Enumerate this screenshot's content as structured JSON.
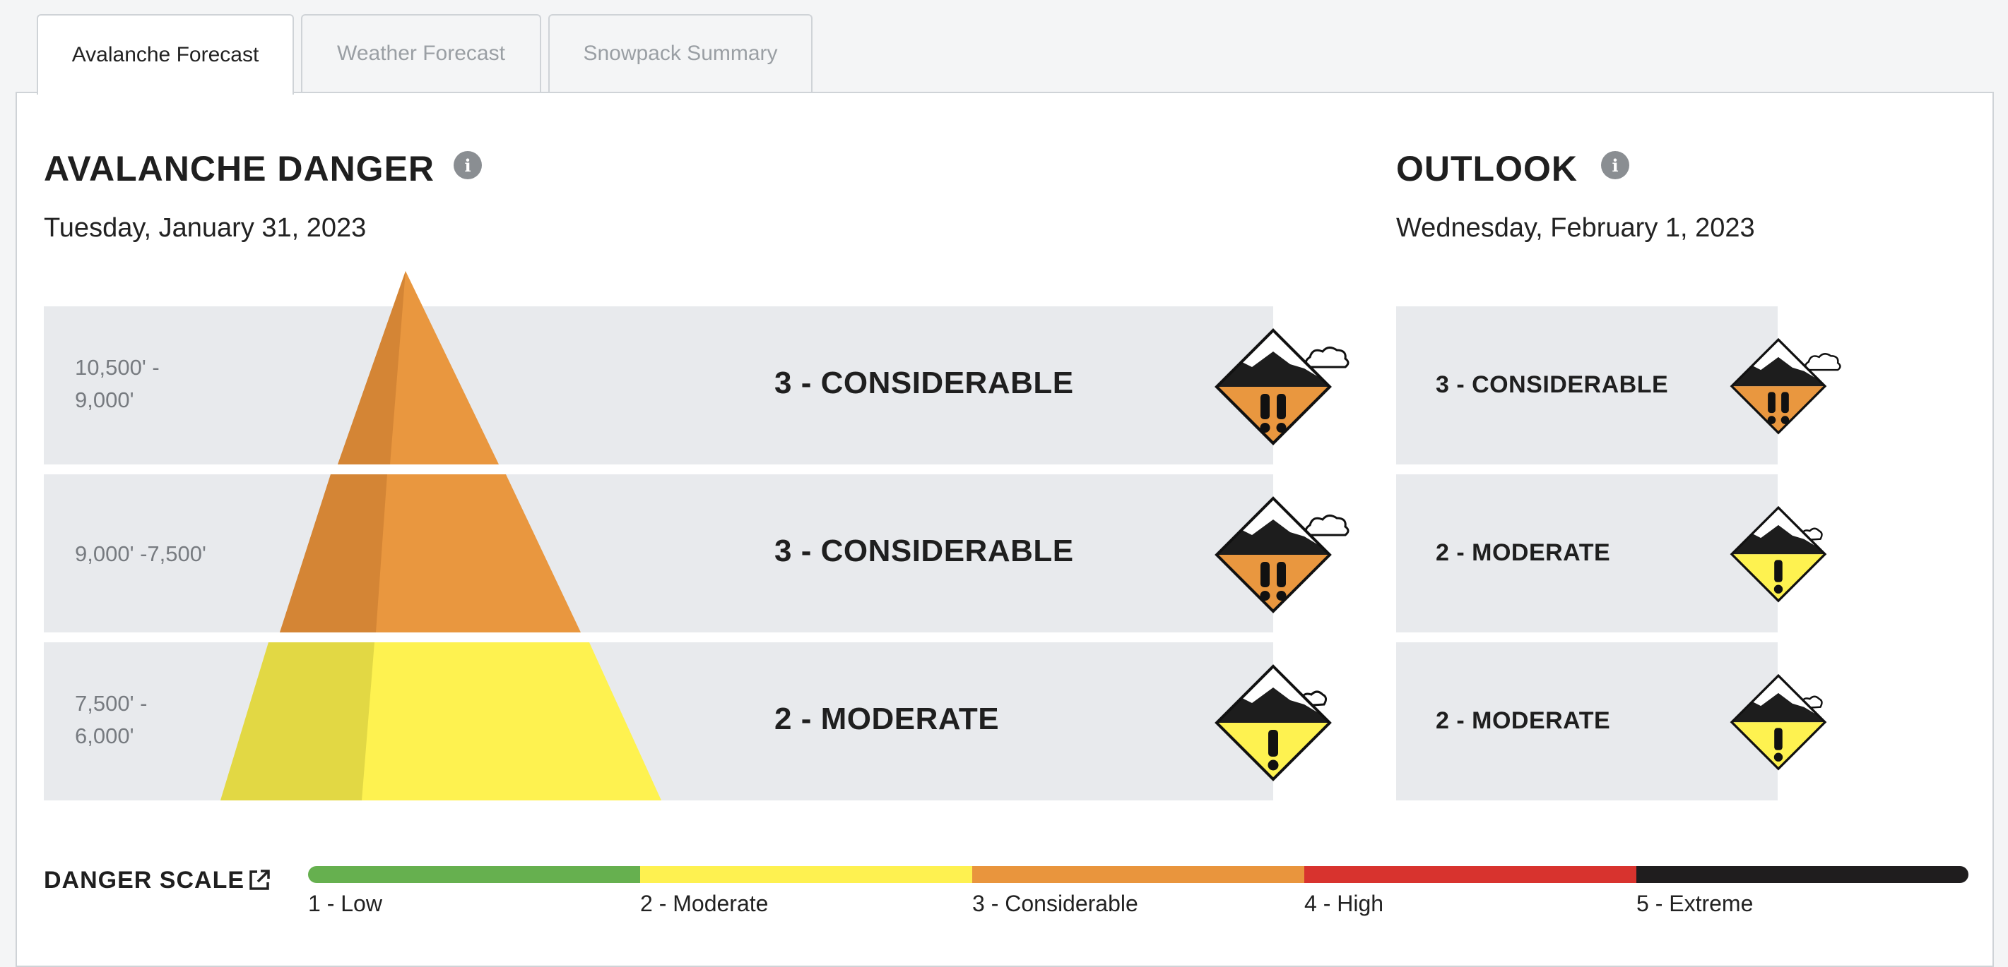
{
  "tabs": [
    {
      "label": "Avalanche Forecast",
      "active": true
    },
    {
      "label": "Weather Forecast",
      "active": false
    },
    {
      "label": "Snowpack Summary",
      "active": false
    }
  ],
  "danger": {
    "title": "AVALANCHE DANGER",
    "date": "Tuesday, January 31, 2023",
    "bands": [
      {
        "elevation": "10,500' -\n9,000'",
        "rating": "3 - CONSIDERABLE",
        "level": 3
      },
      {
        "elevation": "9,000' -7,500'",
        "rating": "3 - CONSIDERABLE",
        "level": 3
      },
      {
        "elevation": "7,500' -\n6,000'",
        "rating": "2 - MODERATE",
        "level": 2
      }
    ]
  },
  "outlook": {
    "title": "OUTLOOK",
    "date": "Wednesday, February 1, 2023",
    "bands": [
      {
        "rating": "3 - CONSIDERABLE",
        "level": 3
      },
      {
        "rating": "2 - MODERATE",
        "level": 2
      },
      {
        "rating": "2 - MODERATE",
        "level": 2
      }
    ]
  },
  "scale": {
    "title": "DANGER SCALE",
    "levels": [
      {
        "label": "1 - Low",
        "color": "#66b04f"
      },
      {
        "label": "2 - Moderate",
        "color": "#fef150"
      },
      {
        "label": "3 - Considerable",
        "color": "#e9953d"
      },
      {
        "label": "4 - High",
        "color": "#d8332e"
      },
      {
        "label": "5 - Extreme",
        "color": "#1f1d1e"
      }
    ]
  },
  "colors": {
    "considerable": "#e9973f",
    "considerable_shade": "#d48535",
    "moderate": "#fef250",
    "moderate_shade": "#e2d844",
    "band_bg": "#e8eaed"
  },
  "icons": {
    "info": "info-icon",
    "external": "external-link-icon",
    "danger": "danger-diamond-icon"
  }
}
